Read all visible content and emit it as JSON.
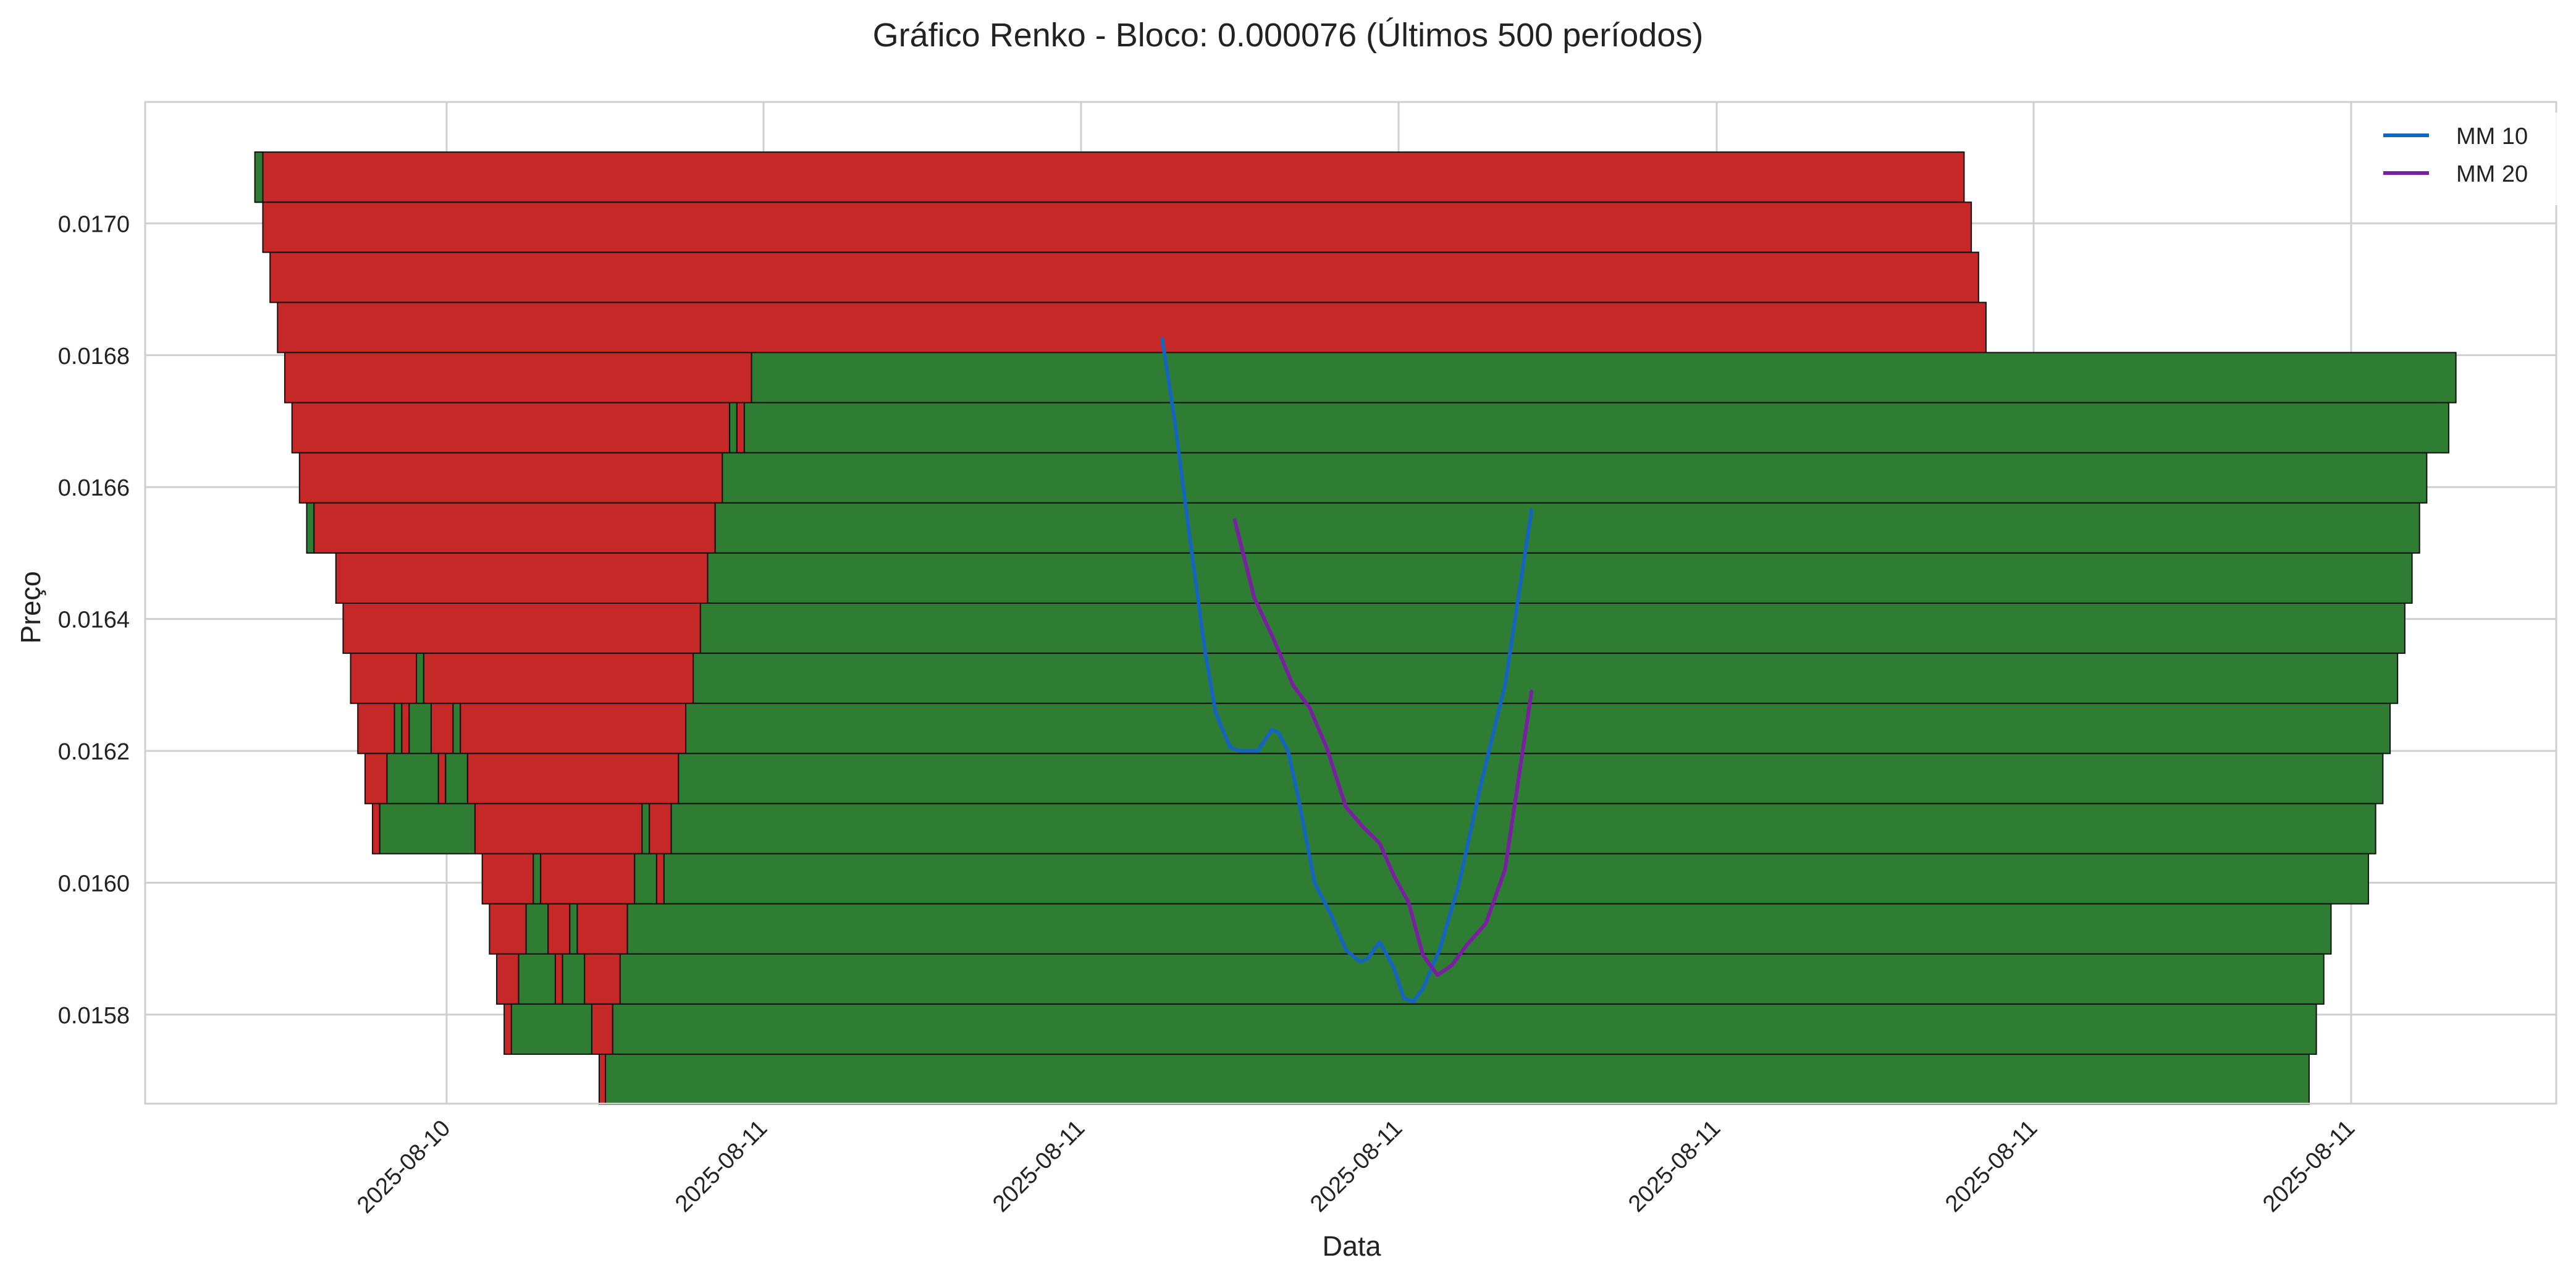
{
  "chart_data": {
    "type": "renko",
    "title": "Gráfico Renko - Bloco: 0.000076 (Últimos 500 períodos)",
    "xlabel": "Data",
    "ylabel": "Preço",
    "block_size": 7.6e-05,
    "ylim": [
      0.015665,
      0.017184
    ],
    "y_ticks": [
      {
        "value": 0.0158,
        "label": "0.0158"
      },
      {
        "value": 0.016,
        "label": "0.0160"
      },
      {
        "value": 0.0162,
        "label": "0.0162"
      },
      {
        "value": 0.0164,
        "label": "0.0164"
      },
      {
        "value": 0.0166,
        "label": "0.0166"
      },
      {
        "value": 0.0168,
        "label": "0.0168"
      },
      {
        "value": 0.017,
        "label": "0.0170"
      }
    ],
    "x_ticks": [
      "2025-08-10",
      "2025-08-11",
      "2025-08-11",
      "2025-08-11",
      "2025-08-11",
      "2025-08-11",
      "2025-08-11"
    ],
    "grid": true,
    "legend_position": "top-right",
    "colors": {
      "up": "#2e7d32",
      "down": "#c62828",
      "edge": "#111111",
      "grid": "#cfcfcf",
      "ma10": "#1565c0",
      "ma20": "#7b1fa2"
    },
    "bricks": {
      "down": [
        {
          "bottom": 0.017032,
          "x0": 0.0458,
          "x1": 0.7544
        },
        {
          "bottom": 0.016956,
          "x0": 0.0488,
          "x1": 0.7574
        },
        {
          "bottom": 0.01688,
          "x0": 0.0518,
          "x1": 0.7604
        },
        {
          "bottom": 0.016804,
          "x0": 0.0549,
          "x1": 0.7635
        },
        {
          "bottom": 0.016728,
          "x0": 0.0579,
          "x1": 0.2515
        },
        {
          "bottom": 0.016652,
          "x0": 0.0609,
          "x1": 0.2424
        },
        {
          "bottom": 0.016652,
          "x0": 0.2454,
          "x1": 0.2485
        },
        {
          "bottom": 0.016576,
          "x0": 0.064,
          "x1": 0.2394
        },
        {
          "bottom": 0.0165,
          "x0": 0.07,
          "x1": 0.2364
        },
        {
          "bottom": 0.016424,
          "x0": 0.0791,
          "x1": 0.2333
        },
        {
          "bottom": 0.016348,
          "x0": 0.0821,
          "x1": 0.2303
        },
        {
          "bottom": 0.016272,
          "x0": 0.0852,
          "x1": 0.1125
        },
        {
          "bottom": 0.016272,
          "x0": 0.1155,
          "x1": 0.2273
        },
        {
          "bottom": 0.016196,
          "x0": 0.0882,
          "x1": 0.1034
        },
        {
          "bottom": 0.016196,
          "x0": 0.1064,
          "x1": 0.1095
        },
        {
          "bottom": 0.016196,
          "x0": 0.1186,
          "x1": 0.1277
        },
        {
          "bottom": 0.016196,
          "x0": 0.1307,
          "x1": 0.2242
        },
        {
          "bottom": 0.01612,
          "x0": 0.0912,
          "x1": 0.1003
        },
        {
          "bottom": 0.01612,
          "x0": 0.1216,
          "x1": 0.1246
        },
        {
          "bottom": 0.01612,
          "x0": 0.1337,
          "x1": 0.2212
        },
        {
          "bottom": 0.016044,
          "x0": 0.0943,
          "x1": 0.0973
        },
        {
          "bottom": 0.016044,
          "x0": 0.1368,
          "x1": 0.2061
        },
        {
          "bottom": 0.016044,
          "x0": 0.2091,
          "x1": 0.2182
        },
        {
          "bottom": 0.015968,
          "x0": 0.1398,
          "x1": 0.161
        },
        {
          "bottom": 0.015968,
          "x0": 0.164,
          "x1": 0.203
        },
        {
          "bottom": 0.015968,
          "x0": 0.2121,
          "x1": 0.2152
        },
        {
          "bottom": 0.015892,
          "x0": 0.1428,
          "x1": 0.158
        },
        {
          "bottom": 0.015892,
          "x0": 0.1671,
          "x1": 0.1761
        },
        {
          "bottom": 0.015892,
          "x0": 0.1792,
          "x1": 0.2
        },
        {
          "bottom": 0.015816,
          "x0": 0.1458,
          "x1": 0.1549
        },
        {
          "bottom": 0.015816,
          "x0": 0.1701,
          "x1": 0.1731
        },
        {
          "bottom": 0.015816,
          "x0": 0.1822,
          "x1": 0.197
        },
        {
          "bottom": 0.01574,
          "x0": 0.1489,
          "x1": 0.1519
        },
        {
          "bottom": 0.01574,
          "x0": 0.1852,
          "x1": 0.1939
        },
        {
          "bottom": 0.015664,
          "x0": 0.1883,
          "x1": 0.1909
        }
      ],
      "up": [
        {
          "bottom": 0.017032,
          "x0": 0.0455,
          "x1": 0.0488
        },
        {
          "bottom": 0.016728,
          "x0": 0.2515,
          "x1": 0.9584
        },
        {
          "bottom": 0.016652,
          "x0": 0.2424,
          "x1": 0.2454
        },
        {
          "bottom": 0.016652,
          "x0": 0.2485,
          "x1": 0.9554
        },
        {
          "bottom": 0.016576,
          "x0": 0.2394,
          "x1": 0.9463
        },
        {
          "bottom": 0.0165,
          "x0": 0.067,
          "x1": 0.07
        },
        {
          "bottom": 0.0165,
          "x0": 0.2364,
          "x1": 0.9433
        },
        {
          "bottom": 0.016424,
          "x0": 0.2333,
          "x1": 0.9402
        },
        {
          "bottom": 0.016348,
          "x0": 0.2303,
          "x1": 0.9372
        },
        {
          "bottom": 0.016272,
          "x0": 0.1125,
          "x1": 0.1155
        },
        {
          "bottom": 0.016272,
          "x0": 0.2273,
          "x1": 0.9342
        },
        {
          "bottom": 0.016196,
          "x0": 0.1034,
          "x1": 0.1064
        },
        {
          "bottom": 0.016196,
          "x0": 0.1095,
          "x1": 0.1186
        },
        {
          "bottom": 0.016196,
          "x0": 0.1277,
          "x1": 0.1307
        },
        {
          "bottom": 0.016196,
          "x0": 0.2242,
          "x1": 0.9311
        },
        {
          "bottom": 0.01612,
          "x0": 0.1003,
          "x1": 0.1216
        },
        {
          "bottom": 0.01612,
          "x0": 0.1246,
          "x1": 0.1337
        },
        {
          "bottom": 0.01612,
          "x0": 0.2212,
          "x1": 0.9281
        },
        {
          "bottom": 0.016044,
          "x0": 0.0973,
          "x1": 0.1368
        },
        {
          "bottom": 0.016044,
          "x0": 0.2061,
          "x1": 0.2091
        },
        {
          "bottom": 0.016044,
          "x0": 0.2182,
          "x1": 0.9251
        },
        {
          "bottom": 0.015968,
          "x0": 0.161,
          "x1": 0.164
        },
        {
          "bottom": 0.015968,
          "x0": 0.203,
          "x1": 0.2121
        },
        {
          "bottom": 0.015968,
          "x0": 0.2152,
          "x1": 0.9221
        },
        {
          "bottom": 0.015892,
          "x0": 0.158,
          "x1": 0.1671
        },
        {
          "bottom": 0.015892,
          "x0": 0.1761,
          "x1": 0.1792
        },
        {
          "bottom": 0.015892,
          "x0": 0.2,
          "x1": 0.9066
        },
        {
          "bottom": 0.015816,
          "x0": 0.1549,
          "x1": 0.1701
        },
        {
          "bottom": 0.015816,
          "x0": 0.1731,
          "x1": 0.1822
        },
        {
          "bottom": 0.015816,
          "x0": 0.197,
          "x1": 0.9036
        },
        {
          "bottom": 0.01574,
          "x0": 0.1519,
          "x1": 0.1852
        },
        {
          "bottom": 0.01574,
          "x0": 0.1939,
          "x1": 0.9005
        },
        {
          "bottom": 0.015664,
          "x0": 0.1909,
          "x1": 0.8975
        }
      ]
    },
    "series": [
      {
        "name": "MM 10",
        "color": "#1565c0",
        "x": [
          0.4218,
          0.427,
          0.433,
          0.4396,
          0.444,
          0.45,
          0.454,
          0.4575,
          0.4615,
          0.4672,
          0.47,
          0.474,
          0.4782,
          0.485,
          0.492,
          0.498,
          0.504,
          0.507,
          0.512,
          0.518,
          0.522,
          0.526,
          0.53,
          0.537,
          0.545,
          0.554,
          0.564,
          0.575
        ],
        "y": [
          0.016825,
          0.0167,
          0.01653,
          0.01635,
          0.016258,
          0.016205,
          0.0162,
          0.0162,
          0.0162,
          0.016232,
          0.016228,
          0.0162,
          0.01613,
          0.016,
          0.01595,
          0.015898,
          0.01588,
          0.015885,
          0.01591,
          0.01587,
          0.015825,
          0.01582,
          0.01584,
          0.0159,
          0.016,
          0.01615,
          0.0163,
          0.016565
        ]
      },
      {
        "name": "MM 20",
        "color": "#7b1fa2",
        "x": [
          0.4519,
          0.46,
          0.468,
          0.476,
          0.483,
          0.49,
          0.498,
          0.505,
          0.512,
          0.518,
          0.524,
          0.53,
          0.536,
          0.542,
          0.548,
          0.556,
          0.564,
          0.575
        ],
        "y": [
          0.01655,
          0.016432,
          0.01637,
          0.0163,
          0.016265,
          0.016205,
          0.016115,
          0.016085,
          0.01606,
          0.01601,
          0.01597,
          0.01589,
          0.01586,
          0.015875,
          0.015905,
          0.015938,
          0.01602,
          0.01629
        ]
      }
    ]
  }
}
